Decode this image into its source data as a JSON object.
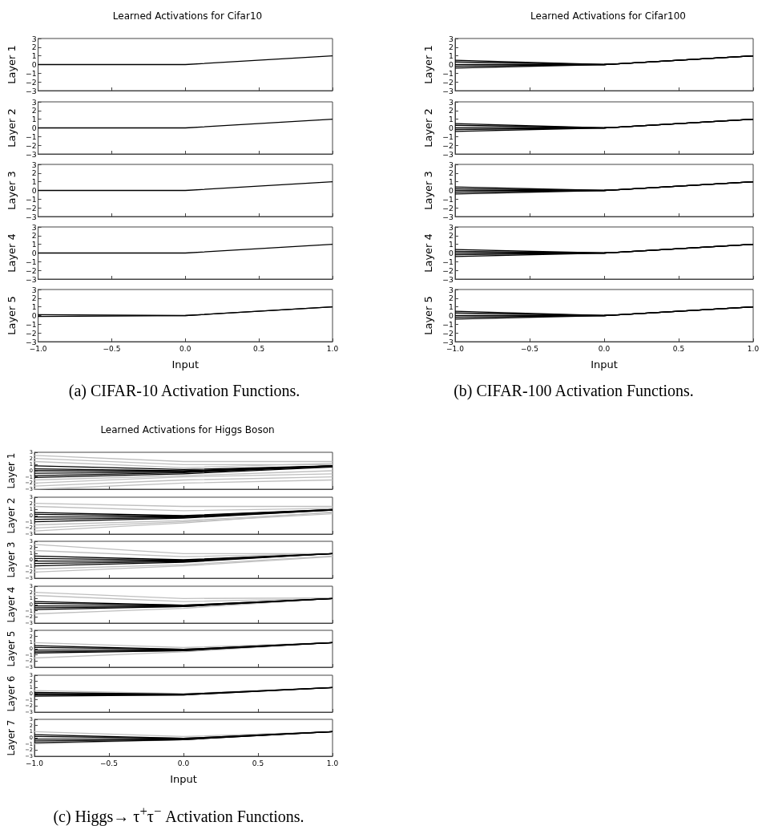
{
  "chart_data": [
    {
      "type": "line",
      "title": "Learned Activations for Cifar10",
      "ylabel": "Layer 1",
      "x": [
        -1,
        0,
        1
      ],
      "xlim": [
        -1,
        1
      ],
      "ylim": [
        -3,
        3
      ],
      "xticks": [
        {
          "value": -1,
          "label": null
        },
        {
          "value": -0.5,
          "label": null
        },
        {
          "value": 0,
          "label": null
        },
        {
          "value": 0.5,
          "label": null
        },
        {
          "value": 1,
          "label": null
        }
      ],
      "yticks": [
        {
          "value": -3,
          "label": "−3"
        },
        {
          "value": -2,
          "label": "−2"
        },
        {
          "value": -1,
          "label": "−1"
        },
        0,
        1,
        2,
        3
      ],
      "tick_labels": "y",
      "series": [
        {
          "color": "#000000",
          "values": [
            0,
            0,
            1
          ]
        }
      ]
    },
    {
      "type": "line",
      "ylabel": "Layer 2",
      "x": [
        -1,
        0,
        1
      ],
      "xlim": [
        -1,
        1
      ],
      "ylim": [
        -3,
        3
      ],
      "xticks": [
        {
          "value": -1,
          "label": null
        },
        {
          "value": -0.5,
          "label": null
        },
        {
          "value": 0,
          "label": null
        },
        {
          "value": 0.5,
          "label": null
        },
        {
          "value": 1,
          "label": null
        }
      ],
      "yticks": [
        {
          "value": -3,
          "label": "−3"
        },
        {
          "value": -2,
          "label": "−2"
        },
        {
          "value": -1,
          "label": "−1"
        },
        0,
        1,
        2,
        3
      ],
      "tick_labels": "y",
      "series": [
        {
          "color": "#000000",
          "values": [
            0,
            0,
            1
          ]
        }
      ]
    },
    {
      "type": "line",
      "ylabel": "Layer 3",
      "x": [
        -1,
        0,
        1
      ],
      "xlim": [
        -1,
        1
      ],
      "ylim": [
        -3,
        3
      ],
      "xticks": [
        {
          "value": -1,
          "label": null
        },
        {
          "value": -0.5,
          "label": null
        },
        {
          "value": 0,
          "label": null
        },
        {
          "value": 0.5,
          "label": null
        },
        {
          "value": 1,
          "label": null
        }
      ],
      "yticks": [
        {
          "value": -3,
          "label": "−3"
        },
        {
          "value": -2,
          "label": "−2"
        },
        {
          "value": -1,
          "label": "−1"
        },
        0,
        1,
        2,
        3
      ],
      "tick_labels": "y",
      "series": [
        {
          "color": "#000000",
          "values": [
            0,
            0,
            1
          ]
        }
      ]
    },
    {
      "type": "line",
      "ylabel": "Layer 4",
      "x": [
        -1,
        0,
        1
      ],
      "xlim": [
        -1,
        1
      ],
      "ylim": [
        -3,
        3
      ],
      "xticks": [
        {
          "value": -1,
          "label": null
        },
        {
          "value": -0.5,
          "label": null
        },
        {
          "value": 0,
          "label": null
        },
        {
          "value": 0.5,
          "label": null
        },
        {
          "value": 1,
          "label": null
        }
      ],
      "yticks": [
        {
          "value": -3,
          "label": "−3"
        },
        {
          "value": -2,
          "label": "−2"
        },
        {
          "value": -1,
          "label": "−1"
        },
        0,
        1,
        2,
        3
      ],
      "tick_labels": "y",
      "series": [
        {
          "color": "#000000",
          "values": [
            0,
            0,
            1
          ]
        }
      ]
    },
    {
      "type": "line",
      "ylabel": "Layer 5",
      "xlabel": "Input",
      "annotations": [
        "(a) CIFAR-10 Activation Functions."
      ],
      "x": [
        -1,
        0,
        1
      ],
      "xlim": [
        -1,
        1
      ],
      "ylim": [
        -3,
        3
      ],
      "xticks": [
        {
          "value": -1,
          "label": "−1.0"
        },
        {
          "value": -0.5,
          "label": "−0.5"
        },
        {
          "value": 0,
          "label": "0.0"
        },
        {
          "value": 0.5,
          "label": "0.5"
        },
        {
          "value": 1,
          "label": "1.0"
        }
      ],
      "yticks": [
        {
          "value": -3,
          "label": "−3"
        },
        {
          "value": -2,
          "label": "−2"
        },
        {
          "value": -1,
          "label": "−1"
        },
        0,
        1,
        2,
        3
      ],
      "series": [
        {
          "color": "#000000",
          "values": [
            0.1,
            0,
            1
          ]
        },
        {
          "color": "#000000",
          "values": [
            -0.1,
            0,
            1
          ]
        }
      ]
    },
    {
      "type": "line",
      "title": "Learned Activations for Cifar100",
      "ylabel": "Layer 1",
      "x": [
        -1,
        0,
        1
      ],
      "xlim": [
        -1,
        1
      ],
      "ylim": [
        -3,
        3
      ],
      "xticks": [
        {
          "value": -1,
          "label": null
        },
        {
          "value": -0.5,
          "label": null
        },
        {
          "value": 0,
          "label": null
        },
        {
          "value": 0.5,
          "label": null
        },
        {
          "value": 1,
          "label": null
        }
      ],
      "yticks": [
        {
          "value": -3,
          "label": "−3"
        },
        {
          "value": -2,
          "label": "−2"
        },
        {
          "value": -1,
          "label": "−1"
        },
        0,
        1,
        2,
        3
      ],
      "tick_labels": "y",
      "series": [
        {
          "color": "#000000",
          "values": [
            0.5,
            0,
            1
          ]
        },
        {
          "color": "#000000",
          "values": [
            0.3,
            0,
            1
          ]
        },
        {
          "color": "#000000",
          "values": [
            0,
            0,
            1
          ]
        },
        {
          "color": "#000000",
          "values": [
            -0.2,
            0,
            1
          ]
        },
        {
          "color": "#000000",
          "values": [
            -0.4,
            0,
            1
          ]
        }
      ]
    },
    {
      "type": "line",
      "ylabel": "Layer 2",
      "x": [
        -1,
        0,
        1
      ],
      "xlim": [
        -1,
        1
      ],
      "ylim": [
        -3,
        3
      ],
      "xticks": [
        {
          "value": -1,
          "label": null
        },
        {
          "value": -0.5,
          "label": null
        },
        {
          "value": 0,
          "label": null
        },
        {
          "value": 0.5,
          "label": null
        },
        {
          "value": 1,
          "label": null
        }
      ],
      "yticks": [
        {
          "value": -3,
          "label": "−3"
        },
        {
          "value": -2,
          "label": "−2"
        },
        {
          "value": -1,
          "label": "−1"
        },
        0,
        1,
        2,
        3
      ],
      "tick_labels": "y",
      "series": [
        {
          "color": "#000000",
          "values": [
            0.5,
            0,
            1
          ]
        },
        {
          "color": "#000000",
          "values": [
            0.3,
            0,
            1
          ]
        },
        {
          "color": "#000000",
          "values": [
            0,
            0,
            1
          ]
        },
        {
          "color": "#000000",
          "values": [
            -0.2,
            0,
            1
          ]
        },
        {
          "color": "#000000",
          "values": [
            -0.4,
            0,
            1
          ]
        }
      ]
    },
    {
      "type": "line",
      "ylabel": "Layer 3",
      "x": [
        -1,
        0,
        1
      ],
      "xlim": [
        -1,
        1
      ],
      "ylim": [
        -3,
        3
      ],
      "xticks": [
        {
          "value": -1,
          "label": null
        },
        {
          "value": -0.5,
          "label": null
        },
        {
          "value": 0,
          "label": null
        },
        {
          "value": 0.5,
          "label": null
        },
        {
          "value": 1,
          "label": null
        }
      ],
      "yticks": [
        {
          "value": -3,
          "label": "−3"
        },
        {
          "value": -2,
          "label": "−2"
        },
        {
          "value": -1,
          "label": "−1"
        },
        0,
        1,
        2,
        3
      ],
      "tick_labels": "y",
      "series": [
        {
          "color": "#000000",
          "values": [
            0.4,
            0,
            1
          ]
        },
        {
          "color": "#000000",
          "values": [
            0.2,
            0,
            1
          ]
        },
        {
          "color": "#000000",
          "values": [
            0,
            0,
            1
          ]
        },
        {
          "color": "#000000",
          "values": [
            -0.2,
            0,
            1
          ]
        },
        {
          "color": "#000000",
          "values": [
            -0.4,
            0,
            1
          ]
        }
      ]
    },
    {
      "type": "line",
      "ylabel": "Layer 4",
      "x": [
        -1,
        0,
        1
      ],
      "xlim": [
        -1,
        1
      ],
      "ylim": [
        -3,
        3
      ],
      "xticks": [
        {
          "value": -1,
          "label": null
        },
        {
          "value": -0.5,
          "label": null
        },
        {
          "value": 0,
          "label": null
        },
        {
          "value": 0.5,
          "label": null
        },
        {
          "value": 1,
          "label": null
        }
      ],
      "yticks": [
        {
          "value": -3,
          "label": "−3"
        },
        {
          "value": -2,
          "label": "−2"
        },
        {
          "value": -1,
          "label": "−1"
        },
        0,
        1,
        2,
        3
      ],
      "tick_labels": "y",
      "series": [
        {
          "color": "#000000",
          "values": [
            0.4,
            0,
            1
          ]
        },
        {
          "color": "#000000",
          "values": [
            0.2,
            0,
            1
          ]
        },
        {
          "color": "#000000",
          "values": [
            0,
            0,
            1
          ]
        },
        {
          "color": "#000000",
          "values": [
            -0.2,
            0,
            1
          ]
        },
        {
          "color": "#000000",
          "values": [
            -0.4,
            0,
            1
          ]
        }
      ]
    },
    {
      "type": "line",
      "ylabel": "Layer 5",
      "xlabel": "Input",
      "annotations": [
        "(b) CIFAR-100 Activation Functions."
      ],
      "x": [
        -1,
        0,
        1
      ],
      "xlim": [
        -1,
        1
      ],
      "ylim": [
        -3,
        3
      ],
      "xticks": [
        {
          "value": -1,
          "label": "−1.0"
        },
        {
          "value": -0.5,
          "label": "−0.5"
        },
        {
          "value": 0,
          "label": "0.0"
        },
        {
          "value": 0.5,
          "label": "0.5"
        },
        {
          "value": 1,
          "label": "1.0"
        }
      ],
      "yticks": [
        {
          "value": -3,
          "label": "−3"
        },
        {
          "value": -2,
          "label": "−2"
        },
        {
          "value": -1,
          "label": "−1"
        },
        0,
        1,
        2,
        3
      ],
      "series": [
        {
          "color": "#000000",
          "values": [
            0.5,
            0,
            1
          ]
        },
        {
          "color": "#000000",
          "values": [
            0.3,
            0,
            1
          ]
        },
        {
          "color": "#000000",
          "values": [
            0,
            0,
            1
          ]
        },
        {
          "color": "#000000",
          "values": [
            -0.2,
            0,
            1
          ]
        },
        {
          "color": "#000000",
          "values": [
            -0.4,
            0,
            1
          ]
        }
      ]
    },
    {
      "type": "line",
      "title": "Learned Activations for Higgs Boson",
      "ylabel": "Layer 1",
      "x": [
        -1,
        0,
        1
      ],
      "xlim": [
        -1,
        1
      ],
      "ylim": [
        -3,
        3
      ],
      "xticks": [
        {
          "value": -1,
          "label": null
        },
        {
          "value": -0.5,
          "label": null
        },
        {
          "value": 0,
          "label": null
        },
        {
          "value": 0.5,
          "label": null
        },
        {
          "value": 1,
          "label": null
        }
      ],
      "yticks": [
        {
          "value": -3,
          "label": "−3"
        },
        {
          "value": -2,
          "label": "−2"
        },
        {
          "value": -1,
          "label": "−1"
        },
        0,
        1,
        2,
        3
      ],
      "tick_labels": "y",
      "series": [
        {
          "color": "#bfbfbf",
          "values": [
            2.5,
            1.5,
            1.5
          ]
        },
        {
          "color": "#bfbfbf",
          "values": [
            2,
            1,
            1
          ]
        },
        {
          "color": "#bfbfbf",
          "values": [
            1.5,
            0.5,
            1.2
          ]
        },
        {
          "color": "#bfbfbf",
          "values": [
            -1.5,
            -0.8,
            0
          ]
        },
        {
          "color": "#bfbfbf",
          "values": [
            -2,
            -1,
            -0.5
          ]
        },
        {
          "color": "#bfbfbf",
          "values": [
            -2.5,
            -1.5,
            -1
          ]
        },
        {
          "color": "#bfbfbf",
          "values": [
            -3,
            -2,
            -1.5
          ]
        },
        {
          "color": "#000000",
          "values": [
            0.8,
            0.2,
            0.8
          ]
        },
        {
          "color": "#000000",
          "values": [
            0.3,
            0,
            0.8
          ]
        },
        {
          "color": "#000000",
          "values": [
            0,
            -0.1,
            0.8
          ]
        },
        {
          "color": "#000000",
          "values": [
            -0.4,
            -0.2,
            0.8
          ]
        },
        {
          "color": "#000000",
          "values": [
            -0.8,
            -0.3,
            0.7
          ]
        },
        {
          "color": "#000000",
          "values": [
            -1.1,
            -0.5,
            0.6
          ]
        }
      ]
    },
    {
      "type": "line",
      "ylabel": "Layer 2",
      "x": [
        -1,
        0,
        1
      ],
      "xlim": [
        -1,
        1
      ],
      "ylim": [
        -3,
        3
      ],
      "xticks": [
        {
          "value": -1,
          "label": null
        },
        {
          "value": -0.5,
          "label": null
        },
        {
          "value": 0,
          "label": null
        },
        {
          "value": 0.5,
          "label": null
        },
        {
          "value": 1,
          "label": null
        }
      ],
      "yticks": [
        {
          "value": -3,
          "label": "−3"
        },
        {
          "value": -2,
          "label": "−2"
        },
        {
          "value": -1,
          "label": "−1"
        },
        0,
        1,
        2,
        3
      ],
      "tick_labels": "y",
      "series": [
        {
          "color": "#bfbfbf",
          "values": [
            2,
            1.5,
            1.5
          ]
        },
        {
          "color": "#bfbfbf",
          "values": [
            1.5,
            0.8,
            1.2
          ]
        },
        {
          "color": "#bfbfbf",
          "values": [
            -1.5,
            -0.8,
            0.5
          ]
        },
        {
          "color": "#bfbfbf",
          "values": [
            -2,
            -1,
            0.3
          ]
        },
        {
          "color": "#bfbfbf",
          "values": [
            -2.5,
            -1.2,
            0.6
          ]
        },
        {
          "color": "#000000",
          "values": [
            0.5,
            0,
            1
          ]
        },
        {
          "color": "#000000",
          "values": [
            0.2,
            -0.1,
            1
          ]
        },
        {
          "color": "#000000",
          "values": [
            -0.2,
            -0.2,
            1
          ]
        },
        {
          "color": "#000000",
          "values": [
            -0.6,
            -0.3,
            0.9
          ]
        },
        {
          "color": "#000000",
          "values": [
            -1,
            -0.4,
            0.9
          ]
        }
      ]
    },
    {
      "type": "line",
      "ylabel": "Layer 3",
      "x": [
        -1,
        0,
        1
      ],
      "xlim": [
        -1,
        1
      ],
      "ylim": [
        -3,
        3
      ],
      "xticks": [
        {
          "value": -1,
          "label": null
        },
        {
          "value": -0.5,
          "label": null
        },
        {
          "value": 0,
          "label": null
        },
        {
          "value": 0.5,
          "label": null
        },
        {
          "value": 1,
          "label": null
        }
      ],
      "yticks": [
        {
          "value": -3,
          "label": "−3"
        },
        {
          "value": -2,
          "label": "−2"
        },
        {
          "value": -1,
          "label": "−1"
        },
        0,
        1,
        2,
        3
      ],
      "tick_labels": "y",
      "series": [
        {
          "color": "#bfbfbf",
          "values": [
            2.5,
            1,
            1
          ]
        },
        {
          "color": "#bfbfbf",
          "values": [
            1.5,
            0.5,
            1
          ]
        },
        {
          "color": "#bfbfbf",
          "values": [
            -1.5,
            -0.8,
            0.6
          ]
        },
        {
          "color": "#bfbfbf",
          "values": [
            -2,
            -1,
            0.5
          ]
        },
        {
          "color": "#000000",
          "values": [
            0.6,
            0,
            1
          ]
        },
        {
          "color": "#000000",
          "values": [
            0.2,
            -0.1,
            1
          ]
        },
        {
          "color": "#000000",
          "values": [
            -0.2,
            -0.2,
            1
          ]
        },
        {
          "color": "#000000",
          "values": [
            -0.6,
            -0.3,
            1
          ]
        },
        {
          "color": "#000000",
          "values": [
            -1,
            -0.4,
            1
          ]
        }
      ]
    },
    {
      "type": "line",
      "ylabel": "Layer 4",
      "x": [
        -1,
        0,
        1
      ],
      "xlim": [
        -1,
        1
      ],
      "ylim": [
        -3,
        3
      ],
      "xticks": [
        {
          "value": -1,
          "label": null
        },
        {
          "value": -0.5,
          "label": null
        },
        {
          "value": 0,
          "label": null
        },
        {
          "value": 0.5,
          "label": null
        },
        {
          "value": 1,
          "label": null
        }
      ],
      "yticks": [
        {
          "value": -3,
          "label": "−3"
        },
        {
          "value": -2,
          "label": "−2"
        },
        {
          "value": -1,
          "label": "−1"
        },
        0,
        1,
        2,
        3
      ],
      "tick_labels": "y",
      "series": [
        {
          "color": "#bfbfbf",
          "values": [
            2,
            1,
            1.1
          ]
        },
        {
          "color": "#bfbfbf",
          "values": [
            1.5,
            0.5,
            1
          ]
        },
        {
          "color": "#bfbfbf",
          "values": [
            -1.5,
            -0.6,
            1
          ]
        },
        {
          "color": "#000000",
          "values": [
            0.5,
            -0.1,
            1
          ]
        },
        {
          "color": "#000000",
          "values": [
            0.2,
            -0.1,
            1
          ]
        },
        {
          "color": "#000000",
          "values": [
            -0.2,
            -0.2,
            1
          ]
        },
        {
          "color": "#000000",
          "values": [
            -0.5,
            -0.3,
            1
          ]
        },
        {
          "color": "#000000",
          "values": [
            -0.8,
            -0.3,
            1
          ]
        }
      ]
    },
    {
      "type": "line",
      "ylabel": "Layer 5",
      "x": [
        -1,
        0,
        1
      ],
      "xlim": [
        -1,
        1
      ],
      "ylim": [
        -3,
        3
      ],
      "xticks": [
        {
          "value": -1,
          "label": null
        },
        {
          "value": -0.5,
          "label": null
        },
        {
          "value": 0,
          "label": null
        },
        {
          "value": 0.5,
          "label": null
        },
        {
          "value": 1,
          "label": null
        }
      ],
      "yticks": [
        {
          "value": -3,
          "label": "−3"
        },
        {
          "value": -2,
          "label": "−2"
        },
        {
          "value": -1,
          "label": "−1"
        },
        0,
        1,
        2,
        3
      ],
      "tick_labels": "y",
      "series": [
        {
          "color": "#bfbfbf",
          "values": [
            1,
            0.2,
            1
          ]
        },
        {
          "color": "#bfbfbf",
          "values": [
            -1.5,
            -0.5,
            1
          ]
        },
        {
          "color": "#000000",
          "values": [
            0.5,
            -0.1,
            1
          ]
        },
        {
          "color": "#000000",
          "values": [
            0.2,
            -0.1,
            1
          ]
        },
        {
          "color": "#000000",
          "values": [
            -0.2,
            -0.2,
            1
          ]
        },
        {
          "color": "#000000",
          "values": [
            -0.5,
            -0.3,
            1
          ]
        },
        {
          "color": "#000000",
          "values": [
            -0.7,
            -0.3,
            1
          ]
        }
      ]
    },
    {
      "type": "line",
      "ylabel": "Layer 6",
      "x": [
        -1,
        0,
        1
      ],
      "xlim": [
        -1,
        1
      ],
      "ylim": [
        -3,
        3
      ],
      "xticks": [
        {
          "value": -1,
          "label": null
        },
        {
          "value": -0.5,
          "label": null
        },
        {
          "value": 0,
          "label": null
        },
        {
          "value": 0.5,
          "label": null
        },
        {
          "value": 1,
          "label": null
        }
      ],
      "yticks": [
        {
          "value": -3,
          "label": "−3"
        },
        {
          "value": -2,
          "label": "−2"
        },
        {
          "value": -1,
          "label": "−1"
        },
        0,
        1,
        2,
        3
      ],
      "tick_labels": "y",
      "series": [
        {
          "color": "#bfbfbf",
          "values": [
            0.5,
            0,
            1
          ]
        },
        {
          "color": "#000000",
          "values": [
            0.2,
            -0.1,
            1
          ]
        },
        {
          "color": "#000000",
          "values": [
            0,
            -0.1,
            1
          ]
        },
        {
          "color": "#000000",
          "values": [
            -0.2,
            -0.2,
            1
          ]
        },
        {
          "color": "#000000",
          "values": [
            -0.4,
            -0.2,
            1
          ]
        }
      ]
    },
    {
      "type": "line",
      "ylabel": "Layer 7",
      "xlabel": "Input",
      "annotations": [
        "(c) Higgs→ τ$^{+}$τ$^{−}$ Activation Functions."
      ],
      "x": [
        -1,
        0,
        1
      ],
      "xlim": [
        -1,
        1
      ],
      "ylim": [
        -3,
        3
      ],
      "xticks": [
        {
          "value": -1,
          "label": "−1.0"
        },
        {
          "value": -0.5,
          "label": "−0.5"
        },
        {
          "value": 0,
          "label": "0.0"
        },
        {
          "value": 0.5,
          "label": "0.5"
        },
        {
          "value": 1,
          "label": "1.0"
        }
      ],
      "yticks": [
        {
          "value": -3,
          "label": "−3"
        },
        {
          "value": -2,
          "label": "−2"
        },
        {
          "value": -1,
          "label": "−1"
        },
        0,
        1,
        2,
        3
      ],
      "series": [
        {
          "color": "#bfbfbf",
          "values": [
            1,
            0.2,
            1
          ]
        },
        {
          "color": "#bfbfbf",
          "values": [
            -1,
            -0.3,
            1
          ]
        },
        {
          "color": "#000000",
          "values": [
            0.5,
            -0.1,
            1
          ]
        },
        {
          "color": "#000000",
          "values": [
            0.2,
            -0.1,
            1
          ]
        },
        {
          "color": "#000000",
          "values": [
            -0.2,
            -0.2,
            1
          ]
        },
        {
          "color": "#000000",
          "values": [
            -0.5,
            -0.3,
            1
          ]
        },
        {
          "color": "#000000",
          "values": [
            -0.8,
            -0.3,
            1
          ]
        }
      ]
    }
  ]
}
